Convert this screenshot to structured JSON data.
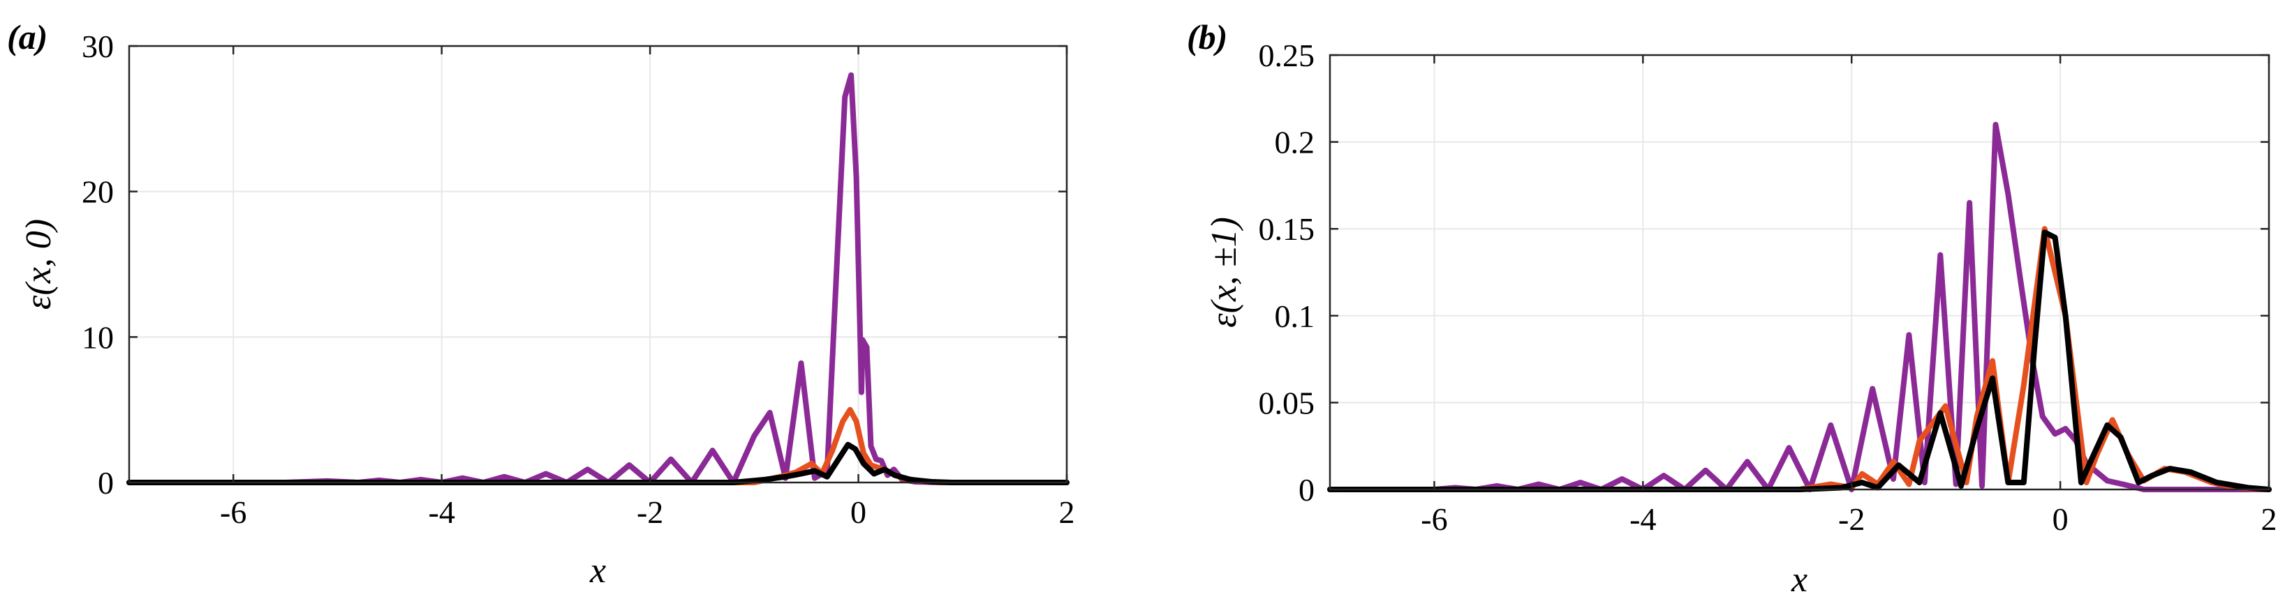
{
  "chart_data": [
    {
      "type": "line",
      "panel_label": "(a)",
      "title": "",
      "xlabel": "x",
      "ylabel": "ε(x, 0)",
      "xlim": [
        -7,
        2
      ],
      "ylim": [
        0,
        30
      ],
      "grid": true,
      "xticks": [
        -6,
        -4,
        -2,
        0,
        2
      ],
      "xtick_labels": [
        "-6",
        "-4",
        "-2",
        "0",
        "2"
      ],
      "yticks": [
        0,
        10,
        20,
        30
      ],
      "ytick_labels": [
        "0",
        "10",
        "20",
        "30"
      ],
      "series": [
        {
          "name": "purple",
          "color": "#8B2A96",
          "x": [
            -7.0,
            -5.5,
            -5.1,
            -4.8,
            -4.6,
            -4.4,
            -4.2,
            -4.0,
            -3.8,
            -3.6,
            -3.4,
            -3.2,
            -3.0,
            -2.8,
            -2.6,
            -2.4,
            -2.2,
            -2.0,
            -1.8,
            -1.6,
            -1.4,
            -1.2,
            -1.0,
            -0.85,
            -0.7,
            -0.55,
            -0.42,
            -0.3,
            -0.2,
            -0.13,
            -0.07,
            -0.02,
            0.03,
            0.04,
            0.08,
            0.12,
            0.17,
            0.22,
            0.28,
            0.34,
            0.42,
            0.55,
            0.8,
            1.2,
            2.0
          ],
          "y": [
            0,
            0,
            0.1,
            0,
            0.15,
            0,
            0.2,
            0,
            0.3,
            0,
            0.4,
            0,
            0.6,
            0,
            0.9,
            0,
            1.2,
            0,
            1.6,
            0,
            2.2,
            0,
            3.2,
            4.8,
            0.3,
            8.2,
            0.3,
            0.8,
            16.0,
            26.5,
            28.0,
            21.0,
            6.2,
            9.8,
            9.3,
            2.5,
            1.6,
            1.5,
            0.5,
            0.9,
            0.2,
            0.05,
            0,
            0,
            0
          ]
        },
        {
          "name": "orange",
          "color": "#E6501E",
          "x": [
            -7.0,
            -1.0,
            -0.75,
            -0.6,
            -0.45,
            -0.35,
            -0.25,
            -0.15,
            -0.08,
            -0.02,
            0.05,
            0.12,
            0.2,
            0.3,
            0.42,
            0.6,
            0.8,
            2.0
          ],
          "y": [
            0,
            0,
            0.4,
            0.7,
            1.3,
            0.6,
            2.2,
            4.2,
            5.0,
            4.2,
            2.0,
            1.2,
            1.0,
            0.7,
            0.3,
            0.1,
            0,
            0
          ]
        },
        {
          "name": "black",
          "color": "#000000",
          "x": [
            -7.0,
            -1.2,
            -0.9,
            -0.7,
            -0.55,
            -0.42,
            -0.3,
            -0.2,
            -0.1,
            -0.03,
            0.05,
            0.15,
            0.25,
            0.35,
            0.5,
            0.7,
            0.9,
            2.0
          ],
          "y": [
            0,
            0,
            0.2,
            0.4,
            0.6,
            0.8,
            0.4,
            1.5,
            2.6,
            2.3,
            1.3,
            0.6,
            0.9,
            0.5,
            0.2,
            0.05,
            0,
            0
          ]
        }
      ]
    },
    {
      "type": "line",
      "panel_label": "(b)",
      "title": "",
      "xlabel": "x",
      "ylabel": "ε(x, ±1)",
      "xlim": [
        -7,
        2
      ],
      "ylim": [
        0,
        0.25
      ],
      "grid": true,
      "xticks": [
        -6,
        -4,
        -2,
        0,
        2
      ],
      "xtick_labels": [
        "-6",
        "-4",
        "-2",
        "0",
        "2"
      ],
      "yticks": [
        0,
        0.05,
        0.1,
        0.15,
        0.2,
        0.25
      ],
      "ytick_labels": [
        "0",
        "0.05",
        "0.1",
        "0.15",
        "0.2",
        "0.25"
      ],
      "series": [
        {
          "name": "purple",
          "color": "#8B2A96",
          "x": [
            -7.0,
            -6.0,
            -5.8,
            -5.6,
            -5.4,
            -5.2,
            -5.0,
            -4.8,
            -4.6,
            -4.4,
            -4.2,
            -4.0,
            -3.8,
            -3.6,
            -3.4,
            -3.2,
            -3.0,
            -2.8,
            -2.6,
            -2.4,
            -2.2,
            -2.0,
            -1.8,
            -1.6,
            -1.45,
            -1.3,
            -1.15,
            -1.0,
            -0.87,
            -0.75,
            -0.62,
            -0.5,
            -0.38,
            -0.27,
            -0.17,
            -0.05,
            0.05,
            0.15,
            0.25,
            0.35,
            0.45,
            0.6,
            0.8,
            1.1,
            1.5,
            2.0
          ],
          "y": [
            0,
            0,
            0.001,
            0,
            0.002,
            0,
            0.003,
            0,
            0.004,
            0,
            0.006,
            0,
            0.008,
            0,
            0.011,
            0,
            0.016,
            0,
            0.024,
            0,
            0.037,
            0,
            0.058,
            0.006,
            0.089,
            0.004,
            0.135,
            0.003,
            0.165,
            0.002,
            0.21,
            0.17,
            0.12,
            0.075,
            0.042,
            0.032,
            0.035,
            0.028,
            0.015,
            0.01,
            0.005,
            0.003,
            0,
            0,
            0,
            0
          ]
        },
        {
          "name": "orange",
          "color": "#E6501E",
          "x": [
            -7.0,
            -2.5,
            -2.2,
            -2.0,
            -1.9,
            -1.75,
            -1.6,
            -1.45,
            -1.35,
            -1.1,
            -0.9,
            -0.8,
            -0.65,
            -0.5,
            -0.35,
            -0.15,
            0.05,
            0.25,
            0.35,
            0.5,
            0.65,
            0.8,
            1.0,
            1.2,
            1.45,
            1.7,
            2.0
          ],
          "y": [
            0,
            0,
            0.003,
            0.001,
            0.009,
            0.003,
            0.016,
            0.003,
            0.028,
            0.048,
            0.004,
            0.042,
            0.074,
            0.004,
            0.06,
            0.15,
            0.1,
            0.004,
            0.02,
            0.04,
            0.02,
            0.005,
            0.012,
            0.01,
            0.004,
            0.001,
            0
          ]
        },
        {
          "name": "black",
          "color": "#000000",
          "x": [
            -7.0,
            -2.5,
            -2.1,
            -1.9,
            -1.75,
            -1.55,
            -1.35,
            -1.15,
            -0.95,
            -0.8,
            -0.65,
            -0.5,
            -0.35,
            -0.25,
            -0.15,
            -0.05,
            0.05,
            0.2,
            0.32,
            0.45,
            0.58,
            0.75,
            0.88,
            1.05,
            1.25,
            1.5,
            1.8,
            2.0
          ],
          "y": [
            0,
            0,
            0.001,
            0.004,
            0.001,
            0.014,
            0.004,
            0.044,
            0.002,
            0.035,
            0.064,
            0.004,
            0.004,
            0.08,
            0.148,
            0.145,
            0.1,
            0.004,
            0.02,
            0.037,
            0.03,
            0.004,
            0.008,
            0.012,
            0.01,
            0.004,
            0.001,
            0
          ]
        }
      ]
    }
  ]
}
